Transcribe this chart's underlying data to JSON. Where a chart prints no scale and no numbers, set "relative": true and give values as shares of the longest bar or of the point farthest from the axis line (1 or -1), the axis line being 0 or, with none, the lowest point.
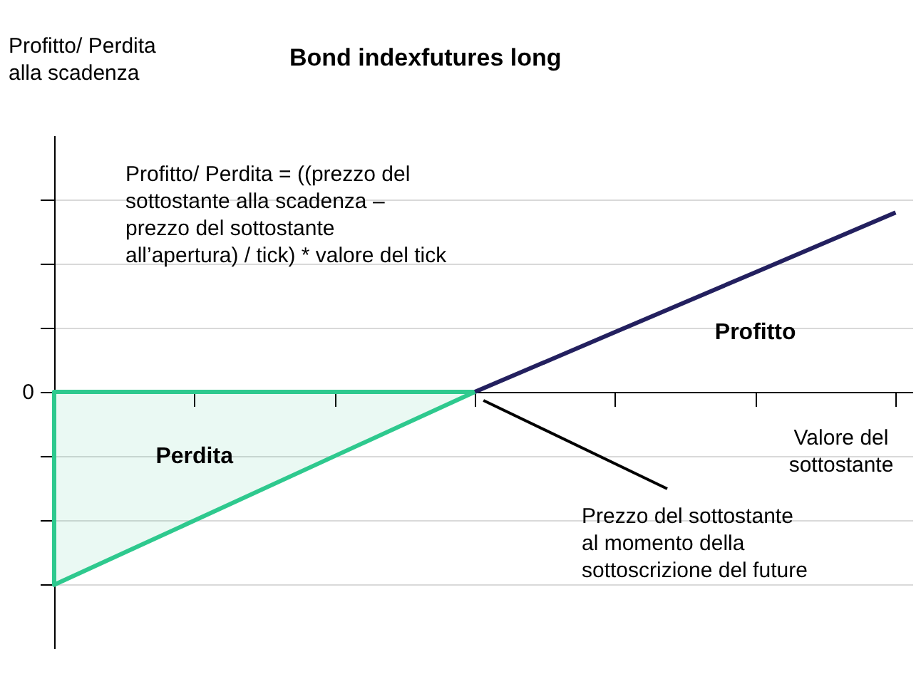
{
  "chart_data": {
    "type": "line",
    "title": "Bond indexfutures long",
    "xlabel": "Valore del\nsottostante",
    "categories": [
      null,
      null,
      null,
      null,
      null,
      null,
      null
    ],
    "relative": true,
    "grid": "y",
    "series": [
      {
        "name": "Perdita",
        "type": "area",
        "color": "#2ec98e",
        "values": [
          -1,
          -0.667,
          -0.333,
          0,
          null,
          null,
          null
        ]
      },
      {
        "name": "Profitto",
        "type": "line",
        "color": "#23205f",
        "values": [
          null,
          null,
          null,
          0,
          0.31,
          0.62,
          0.93
        ]
      }
    ],
    "annotations": [
      "0",
      "Profitto/ Perdita = ((prezzo del\nsottostante alla scadenza –\nprezzo del sottostante\nall’apertura) / tick) * valore del tick",
      "Prezzo del sottostante\nal momento della\nsottoscrizione del future",
      "Profitto/ Perdita\nalla scadenza"
    ]
  }
}
